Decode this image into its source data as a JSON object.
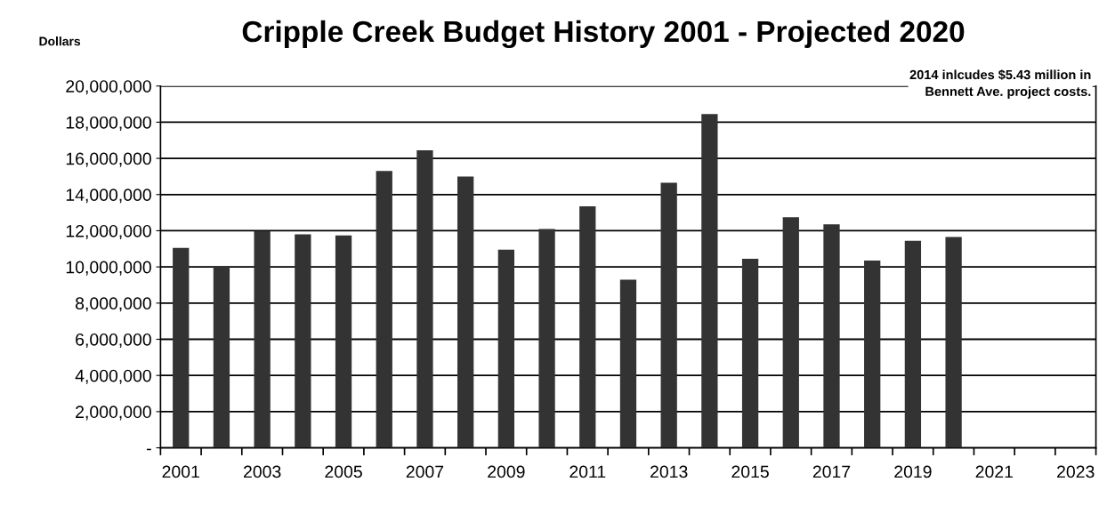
{
  "chart_data": {
    "type": "bar",
    "title": "Cripple Creek Budget History 2001 - Projected 2020",
    "ylabel": "Dollars",
    "categories": [
      "2001",
      null,
      "2003",
      null,
      "2005",
      null,
      "2007",
      null,
      "2009",
      null,
      "2011",
      null,
      "2013",
      null,
      "2015",
      null,
      "2017",
      null,
      "2019",
      null,
      "2021",
      null,
      "2023"
    ],
    "values": [
      11050000,
      10060000,
      11980000,
      11800000,
      11740000,
      15300000,
      16450000,
      15000000,
      10950000,
      12100000,
      13350000,
      9300000,
      14650000,
      18450000,
      10450000,
      12750000,
      12350000,
      10350000,
      11450000,
      11650000,
      null,
      null,
      null
    ],
    "color": "#333333",
    "ylim": [
      0,
      20000000
    ],
    "yticks": [
      {
        "value": 0,
        "label": "-"
      },
      {
        "value": 2000000,
        "label": "2,000,000"
      },
      {
        "value": 4000000,
        "label": "4,000,000"
      },
      {
        "value": 6000000,
        "label": "6,000,000"
      },
      {
        "value": 8000000,
        "label": "8,000,000"
      },
      {
        "value": 10000000,
        "label": "10,000,000"
      },
      {
        "value": 12000000,
        "label": "12,000,000"
      },
      {
        "value": 14000000,
        "label": "14,000,000"
      },
      {
        "value": 16000000,
        "label": "16,000,000"
      },
      {
        "value": 18000000,
        "label": "18,000,000"
      },
      {
        "value": 20000000,
        "label": "20,000,000"
      }
    ],
    "grid": "y",
    "annotations": [
      "2014 inlcudes $5.43 million in\nBennett Ave. project costs."
    ]
  }
}
